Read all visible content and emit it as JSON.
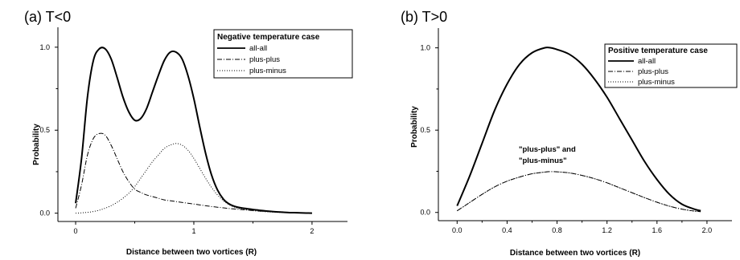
{
  "chart_data": [
    {
      "type": "line",
      "panel_label": "(a)  T<0",
      "xlabel": "Distance between two vortices (R)",
      "ylabel": "Probability",
      "xlim": [
        -0.15,
        2.3
      ],
      "ylim": [
        -0.05,
        1.12
      ],
      "x_ticks": [
        0,
        1,
        2
      ],
      "x_tick_labels": [
        "0",
        "1",
        "2"
      ],
      "y_ticks": [
        0.0,
        0.5,
        1.0
      ],
      "y_tick_labels": [
        "0.0",
        "0.5",
        "1.0"
      ],
      "grid": false,
      "legend_title": "Negative temperature case",
      "legend_position": "top-right",
      "series": [
        {
          "name": "all-all",
          "style": "solid",
          "x": [
            0.0,
            0.05,
            0.1,
            0.15,
            0.2,
            0.25,
            0.3,
            0.35,
            0.4,
            0.45,
            0.5,
            0.55,
            0.6,
            0.65,
            0.7,
            0.75,
            0.8,
            0.85,
            0.9,
            0.95,
            1.0,
            1.05,
            1.1,
            1.15,
            1.2,
            1.25,
            1.3,
            1.35,
            1.4,
            1.45,
            1.5,
            1.55,
            1.6,
            1.65,
            1.7,
            1.75,
            1.8,
            1.85,
            1.9,
            1.95,
            2.0
          ],
          "y": [
            0.06,
            0.33,
            0.7,
            0.92,
            0.99,
            0.99,
            0.93,
            0.82,
            0.7,
            0.61,
            0.56,
            0.57,
            0.63,
            0.73,
            0.83,
            0.92,
            0.97,
            0.97,
            0.93,
            0.83,
            0.69,
            0.52,
            0.36,
            0.23,
            0.14,
            0.085,
            0.055,
            0.04,
            0.032,
            0.027,
            0.022,
            0.018,
            0.014,
            0.011,
            0.008,
            0.006,
            0.004,
            0.003,
            0.002,
            0.001,
            0.0
          ]
        },
        {
          "name": "plus-plus",
          "style": "dashdot",
          "x": [
            0.0,
            0.05,
            0.1,
            0.15,
            0.2,
            0.25,
            0.3,
            0.35,
            0.4,
            0.45,
            0.5,
            0.55,
            0.6,
            0.65,
            0.7,
            0.75,
            0.8,
            0.85,
            0.9,
            0.95,
            1.0,
            1.05,
            1.1,
            1.15,
            1.2,
            1.25,
            1.3,
            1.35,
            1.4,
            1.45,
            1.5,
            1.55,
            1.6,
            1.65,
            1.7,
            1.75,
            1.8,
            1.85,
            1.9,
            1.95,
            2.0
          ],
          "y": [
            0.03,
            0.17,
            0.35,
            0.45,
            0.48,
            0.47,
            0.41,
            0.33,
            0.25,
            0.19,
            0.145,
            0.125,
            0.11,
            0.1,
            0.09,
            0.08,
            0.075,
            0.07,
            0.065,
            0.06,
            0.055,
            0.05,
            0.045,
            0.04,
            0.036,
            0.032,
            0.028,
            0.025,
            0.022,
            0.019,
            0.016,
            0.013,
            0.011,
            0.009,
            0.007,
            0.005,
            0.004,
            0.003,
            0.002,
            0.001,
            0.0
          ]
        },
        {
          "name": "plus-minus",
          "style": "dotted",
          "x": [
            0.0,
            0.05,
            0.1,
            0.15,
            0.2,
            0.25,
            0.3,
            0.35,
            0.4,
            0.45,
            0.5,
            0.55,
            0.6,
            0.65,
            0.7,
            0.75,
            0.8,
            0.85,
            0.9,
            0.95,
            1.0,
            1.05,
            1.1,
            1.15,
            1.2,
            1.25,
            1.3,
            1.35,
            1.4,
            1.45,
            1.5,
            1.55,
            1.6,
            1.65,
            1.7,
            1.75,
            1.8,
            1.85,
            1.9,
            1.95,
            2.0
          ],
          "y": [
            0.0,
            0.002,
            0.005,
            0.01,
            0.018,
            0.03,
            0.045,
            0.065,
            0.09,
            0.12,
            0.16,
            0.21,
            0.26,
            0.31,
            0.35,
            0.39,
            0.41,
            0.42,
            0.41,
            0.38,
            0.33,
            0.27,
            0.21,
            0.155,
            0.11,
            0.075,
            0.05,
            0.035,
            0.025,
            0.019,
            0.015,
            0.012,
            0.009,
            0.007,
            0.005,
            0.004,
            0.003,
            0.002,
            0.001,
            0.001,
            0.0
          ]
        }
      ]
    },
    {
      "type": "line",
      "panel_label": "(b)  T>0",
      "xlabel": "Distance between two vortices (R)",
      "ylabel": "Probability",
      "xlim": [
        -0.15,
        2.2
      ],
      "ylim": [
        -0.05,
        1.12
      ],
      "x_ticks": [
        0.0,
        0.4,
        0.8,
        1.2,
        1.6,
        2.0
      ],
      "x_tick_labels": [
        "0.0",
        "0.4",
        "0.8",
        "1.2",
        "1.6",
        "2.0"
      ],
      "y_ticks": [
        0.0,
        0.5,
        1.0
      ],
      "y_tick_labels": [
        "0.0",
        "0.5",
        "1.0"
      ],
      "grid": false,
      "legend_title": "Positive temperature case",
      "legend_position": "top-right",
      "annotation": [
        "\"plus-plus\" and",
        "\"plus-minus\""
      ],
      "series": [
        {
          "name": "all-all",
          "style": "solid",
          "x": [
            0.0,
            0.1,
            0.2,
            0.3,
            0.4,
            0.5,
            0.6,
            0.7,
            0.75,
            0.8,
            0.9,
            1.0,
            1.1,
            1.2,
            1.3,
            1.4,
            1.5,
            1.6,
            1.7,
            1.8,
            1.9,
            1.95
          ],
          "y": [
            0.04,
            0.22,
            0.42,
            0.62,
            0.78,
            0.9,
            0.97,
            1.0,
            1.0,
            0.99,
            0.96,
            0.9,
            0.81,
            0.7,
            0.57,
            0.44,
            0.31,
            0.2,
            0.11,
            0.05,
            0.02,
            0.01
          ]
        },
        {
          "name": "plus-plus",
          "style": "dashdot",
          "x": [
            0.0,
            0.1,
            0.2,
            0.3,
            0.4,
            0.5,
            0.6,
            0.7,
            0.75,
            0.8,
            0.9,
            1.0,
            1.1,
            1.2,
            1.3,
            1.4,
            1.5,
            1.6,
            1.7,
            1.8,
            1.9,
            1.95
          ],
          "y": [
            0.01,
            0.06,
            0.11,
            0.155,
            0.19,
            0.215,
            0.235,
            0.245,
            0.248,
            0.247,
            0.24,
            0.225,
            0.205,
            0.18,
            0.15,
            0.12,
            0.09,
            0.062,
            0.038,
            0.02,
            0.008,
            0.005
          ]
        },
        {
          "name": "plus-minus",
          "style": "dotted",
          "x": [
            0.0,
            0.1,
            0.2,
            0.3,
            0.4,
            0.5,
            0.6,
            0.7,
            0.75,
            0.8,
            0.9,
            1.0,
            1.1,
            1.2,
            1.3,
            1.4,
            1.5,
            1.6,
            1.7,
            1.8,
            1.9,
            1.95
          ],
          "y": [
            0.01,
            0.06,
            0.11,
            0.155,
            0.19,
            0.215,
            0.235,
            0.245,
            0.248,
            0.247,
            0.24,
            0.225,
            0.205,
            0.18,
            0.15,
            0.12,
            0.09,
            0.062,
            0.038,
            0.02,
            0.008,
            0.005
          ]
        }
      ]
    }
  ]
}
